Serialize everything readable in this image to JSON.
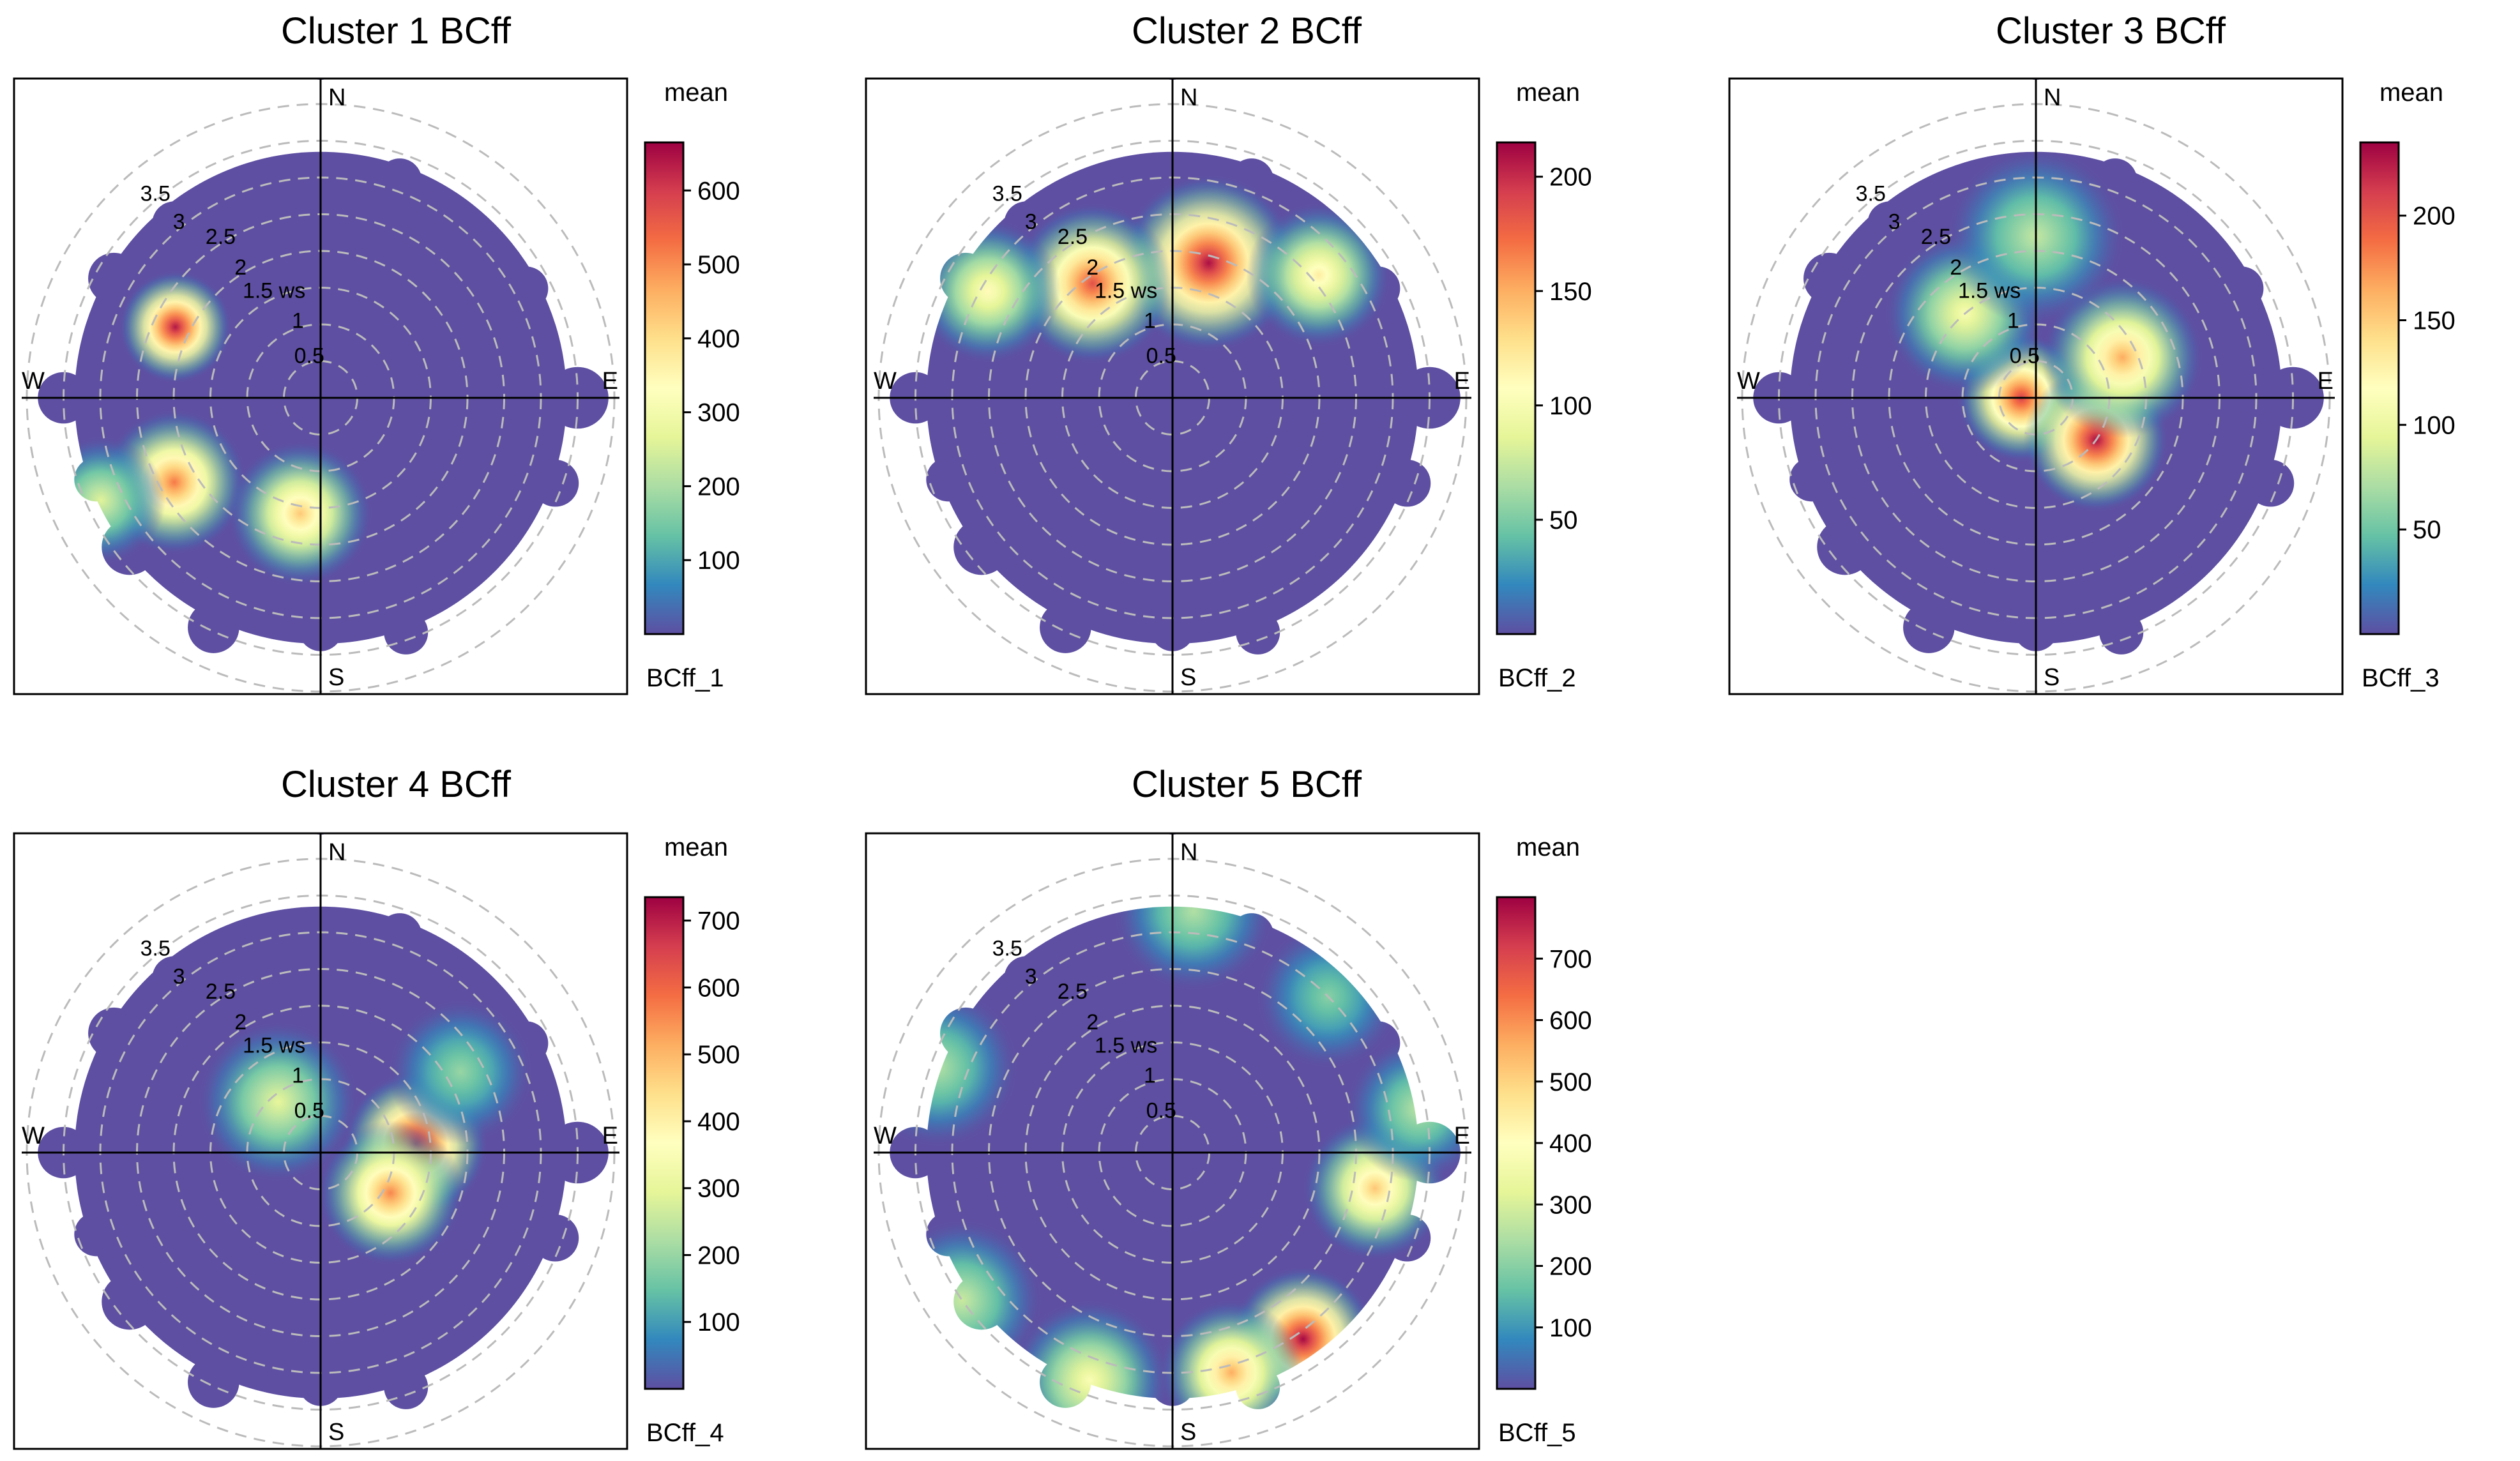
{
  "figure": {
    "colors": {
      "scale": [
        "#5e4fa2",
        "#3288bd",
        "#66c2a5",
        "#abdda4",
        "#e6f598",
        "#ffffbf",
        "#fee08b",
        "#fdae61",
        "#f46d43",
        "#d53e4f",
        "#9e0142"
      ],
      "background_fill": "#5e4fa2",
      "grid": "#bbbbbb",
      "axis": "#000000"
    }
  },
  "chart_data": [
    {
      "type": "heatmap",
      "title": "Cluster 1 BCff",
      "legend_title": "mean",
      "legend_label": "BCff_1",
      "colorbar_range": [
        0,
        665
      ],
      "colorbar_ticks": [
        100,
        200,
        300,
        400,
        500,
        600
      ],
      "compass": [
        "N",
        "E",
        "S",
        "W"
      ],
      "radial_ticks": [
        "0.5",
        "1",
        "1.5 ws",
        "2",
        "2.5",
        "3",
        "3.5"
      ],
      "radial_max": 4.0,
      "hotspots": [
        {
          "dir_deg": 240,
          "ws": 2.3,
          "spread": 0.45,
          "value": 520
        },
        {
          "dir_deg": 296,
          "ws": 2.2,
          "spread": 0.35,
          "value": 640
        },
        {
          "dir_deg": 190,
          "ws": 1.6,
          "spread": 0.45,
          "value": 430
        },
        {
          "dir_deg": 245,
          "ws": 3.3,
          "spread": 0.4,
          "value": 260
        }
      ]
    },
    {
      "type": "heatmap",
      "title": "Cluster 2 BCff",
      "legend_title": "mean",
      "legend_label": "BCff_2",
      "colorbar_range": [
        0,
        215
      ],
      "colorbar_ticks": [
        50,
        100,
        150,
        200
      ],
      "compass": [
        "N",
        "E",
        "S",
        "W"
      ],
      "radial_ticks": [
        "0.5",
        "1",
        "1.5 ws",
        "2",
        "2.5",
        "3",
        "3.5"
      ],
      "radial_max": 4.0,
      "hotspots": [
        {
          "dir_deg": 15,
          "ws": 1.9,
          "spread": 0.55,
          "value": 210
        },
        {
          "dir_deg": 325,
          "ws": 1.9,
          "spread": 0.5,
          "value": 185
        },
        {
          "dir_deg": 50,
          "ws": 2.6,
          "spread": 0.45,
          "value": 120
        },
        {
          "dir_deg": 300,
          "ws": 2.9,
          "spread": 0.45,
          "value": 110
        }
      ]
    },
    {
      "type": "heatmap",
      "title": "Cluster 3 BCff",
      "legend_title": "mean",
      "legend_label": "BCff_3",
      "colorbar_range": [
        0,
        235
      ],
      "colorbar_ticks": [
        50,
        100,
        150,
        200
      ],
      "compass": [
        "N",
        "E",
        "S",
        "W"
      ],
      "radial_ticks": [
        "0.5",
        "1",
        "1.5 ws",
        "2",
        "2.5",
        "3",
        "3.5"
      ],
      "radial_max": 4.0,
      "hotspots": [
        {
          "dir_deg": 270,
          "ws": 0.2,
          "spread": 0.4,
          "value": 210
        },
        {
          "dir_deg": 125,
          "ws": 1.0,
          "spread": 0.45,
          "value": 230
        },
        {
          "dir_deg": 65,
          "ws": 1.3,
          "spread": 0.5,
          "value": 165
        },
        {
          "dir_deg": 320,
          "ws": 1.5,
          "spread": 0.5,
          "value": 110
        },
        {
          "dir_deg": 0,
          "ws": 2.2,
          "spread": 0.55,
          "value": 80
        }
      ]
    },
    {
      "type": "heatmap",
      "title": "Cluster 4 BCff",
      "legend_title": "mean",
      "legend_label": "BCff_4",
      "colorbar_range": [
        0,
        735
      ],
      "colorbar_ticks": [
        100,
        200,
        300,
        400,
        500,
        600,
        700
      ],
      "compass": [
        "N",
        "E",
        "S",
        "W"
      ],
      "radial_ticks": [
        "0.5",
        "1",
        "1.5 ws",
        "2",
        "2.5",
        "3",
        "3.5"
      ],
      "radial_max": 4.0,
      "hotspots": [
        {
          "dir_deg": 85,
          "ws": 1.3,
          "spread": 0.45,
          "value": 720
        },
        {
          "dir_deg": 120,
          "ws": 1.1,
          "spread": 0.45,
          "value": 560
        },
        {
          "dir_deg": 320,
          "ws": 0.9,
          "spread": 0.5,
          "value": 300
        },
        {
          "dir_deg": 60,
          "ws": 2.2,
          "spread": 0.45,
          "value": 200
        }
      ]
    },
    {
      "type": "heatmap",
      "title": "Cluster 5 BCff",
      "legend_title": "mean",
      "legend_label": "BCff_5",
      "colorbar_range": [
        0,
        800
      ],
      "colorbar_ticks": [
        100,
        200,
        300,
        400,
        500,
        600,
        700
      ],
      "compass": [
        "N",
        "E",
        "S",
        "W"
      ],
      "radial_ticks": [
        "0.5",
        "1",
        "1.5 ws",
        "2",
        "2.5",
        "3",
        "3.5"
      ],
      "radial_max": 4.0,
      "hotspots": [
        {
          "dir_deg": 145,
          "ws": 3.1,
          "spread": 0.45,
          "value": 790
        },
        {
          "dir_deg": 165,
          "ws": 3.1,
          "spread": 0.45,
          "value": 560
        },
        {
          "dir_deg": 100,
          "ws": 2.8,
          "spread": 0.45,
          "value": 520
        },
        {
          "dir_deg": 200,
          "ws": 3.3,
          "spread": 0.5,
          "value": 380
        },
        {
          "dir_deg": 235,
          "ws": 3.5,
          "spread": 0.5,
          "value": 280
        },
        {
          "dir_deg": 290,
          "ws": 3.4,
          "spread": 0.5,
          "value": 250
        },
        {
          "dir_deg": 5,
          "ws": 3.3,
          "spread": 0.5,
          "value": 250
        },
        {
          "dir_deg": 45,
          "ws": 3.0,
          "spread": 0.45,
          "value": 200
        },
        {
          "dir_deg": 80,
          "ws": 3.4,
          "spread": 0.45,
          "value": 260
        }
      ]
    }
  ]
}
